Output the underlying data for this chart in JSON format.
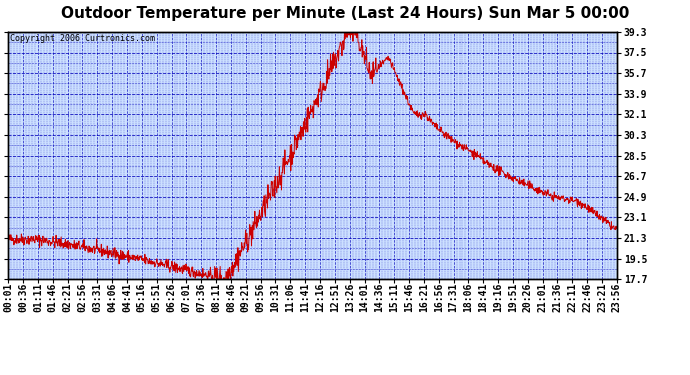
{
  "title": "Outdoor Temperature per Minute (Last 24 Hours) Sun Mar 5 00:00",
  "copyright": "Copyright 2006 Curtronics.com",
  "background_color": "#ffffff",
  "plot_background": "#cce0ff",
  "line_color": "#cc0000",
  "grid_color": "#0000bb",
  "border_color": "#000000",
  "title_fontsize": 11,
  "tick_fontsize": 7,
  "yticks": [
    17.7,
    19.5,
    21.3,
    23.1,
    24.9,
    26.7,
    28.5,
    30.3,
    32.1,
    33.9,
    35.7,
    37.5,
    39.3
  ],
  "ymin": 17.7,
  "ymax": 39.3,
  "x_tick_labels": [
    "00:01",
    "00:36",
    "01:11",
    "01:46",
    "02:21",
    "02:56",
    "03:31",
    "04:06",
    "04:41",
    "05:16",
    "05:51",
    "06:26",
    "07:01",
    "07:36",
    "08:11",
    "08:46",
    "09:21",
    "09:56",
    "10:31",
    "11:06",
    "11:41",
    "12:16",
    "12:51",
    "13:26",
    "14:01",
    "14:36",
    "15:11",
    "15:46",
    "16:21",
    "16:56",
    "17:31",
    "18:06",
    "18:41",
    "19:16",
    "19:51",
    "20:26",
    "21:01",
    "21:36",
    "22:11",
    "22:46",
    "23:21",
    "23:56"
  ]
}
